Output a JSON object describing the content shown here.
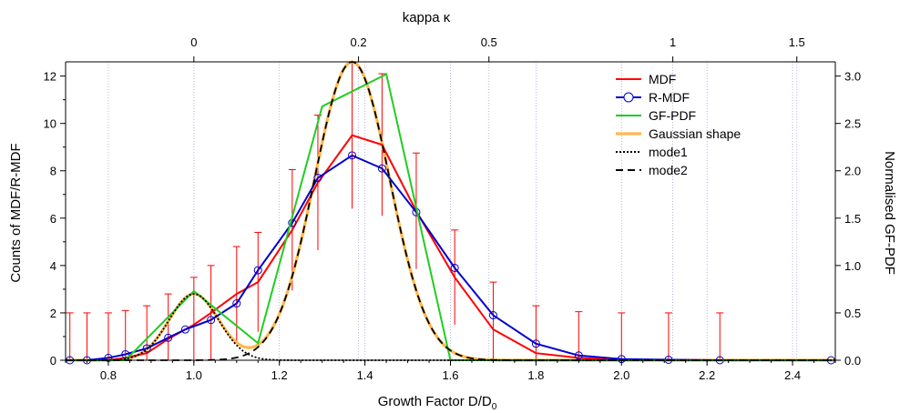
{
  "chart_data": {
    "type": "line",
    "xlabel": "Growth Factor D/D",
    "xlabel_sub": "0",
    "ylabel_left": "Counts of MDF/R-MDF",
    "ylabel_right": "Normalised GF-PDF",
    "top_axis_label": "kappa  κ",
    "xlim": [
      0.7,
      2.5
    ],
    "ylim_left": [
      0,
      12.6
    ],
    "ylim_right": [
      0,
      3.15
    ],
    "x_ticks": [
      {
        "v": 0.8,
        "label": "0.8"
      },
      {
        "v": 1.0,
        "label": "1.0"
      },
      {
        "v": 1.2,
        "label": "1.2"
      },
      {
        "v": 1.4,
        "label": "1.4"
      },
      {
        "v": 1.6,
        "label": "1.6"
      },
      {
        "v": 1.8,
        "label": "1.8"
      },
      {
        "v": 2.0,
        "label": "2.0"
      },
      {
        "v": 2.2,
        "label": "2.2"
      },
      {
        "v": 2.4,
        "label": "2.4"
      }
    ],
    "y_left_ticks": [
      {
        "v": 0,
        "label": "0"
      },
      {
        "v": 2,
        "label": "2"
      },
      {
        "v": 4,
        "label": "4"
      },
      {
        "v": 6,
        "label": "6"
      },
      {
        "v": 8,
        "label": "8"
      },
      {
        "v": 10,
        "label": "10"
      },
      {
        "v": 12,
        "label": "12"
      }
    ],
    "y_right_ticks": [
      {
        "v": 0.0,
        "label": "0.0"
      },
      {
        "v": 0.5,
        "label": "0.5"
      },
      {
        "v": 1.0,
        "label": "1.0"
      },
      {
        "v": 1.5,
        "label": "1.5"
      },
      {
        "v": 2.0,
        "label": "2.0"
      },
      {
        "v": 2.5,
        "label": "2.5"
      },
      {
        "v": 3.0,
        "label": "3.0"
      }
    ],
    "top_ticks": [
      {
        "gf": 1.0,
        "label": "0"
      },
      {
        "gf": 1.385,
        "label": "0.2"
      },
      {
        "gf": 1.69,
        "label": "0.5"
      },
      {
        "gf": 2.12,
        "label": "1"
      },
      {
        "gf": 2.41,
        "label": "1.5"
      }
    ],
    "grid": true,
    "legend_position": "top-right",
    "legend": [
      {
        "label": "MDF",
        "color": "#ff0000",
        "style": "solid"
      },
      {
        "label": "R-MDF",
        "color": "#0000cc",
        "style": "solid-circle"
      },
      {
        "label": "GF-PDF",
        "color": "#22cc22",
        "style": "solid"
      },
      {
        "label": "Gaussian shape",
        "color": "#ffb84d",
        "style": "thick"
      },
      {
        "label": "mode1",
        "color": "#000000",
        "style": "dotted"
      },
      {
        "label": "mode2",
        "color": "#000000",
        "style": "dashed"
      }
    ],
    "series": [
      {
        "name": "MDF",
        "axis": "left",
        "color": "#ff0000",
        "x": [
          0.71,
          0.75,
          0.8,
          0.84,
          0.89,
          0.94,
          1.0,
          1.04,
          1.1,
          1.15,
          1.23,
          1.29,
          1.37,
          1.44,
          1.52,
          1.61,
          1.7,
          1.8,
          1.9,
          2.0,
          2.11,
          2.23,
          2.49
        ],
        "y": [
          0,
          0,
          0,
          0.1,
          0.3,
          0.9,
          1.5,
          2.0,
          2.8,
          3.3,
          5.5,
          7.5,
          9.5,
          9.1,
          6.3,
          3.5,
          1.3,
          0.3,
          0.1,
          0,
          0,
          0,
          0
        ]
      },
      {
        "name": "R-MDF",
        "axis": "left",
        "color": "#0000cc",
        "x": [
          0.71,
          0.75,
          0.8,
          0.84,
          0.89,
          0.94,
          0.98,
          1.04,
          1.1,
          1.15,
          1.23,
          1.29,
          1.37,
          1.44,
          1.52,
          1.61,
          1.7,
          1.8,
          1.9,
          2.0,
          2.11,
          2.23,
          2.49
        ],
        "y": [
          0,
          0,
          0.1,
          0.25,
          0.5,
          0.95,
          1.3,
          1.7,
          2.4,
          3.8,
          5.8,
          7.7,
          8.65,
          8.1,
          6.25,
          3.9,
          1.9,
          0.7,
          0.2,
          0.05,
          0.02,
          0,
          0
        ],
        "markers": true
      },
      {
        "name": "GF-PDF",
        "axis": "right",
        "color": "#22cc22",
        "x": [
          0.71,
          0.84,
          1.0,
          1.15,
          1.3,
          1.45,
          1.6,
          1.62,
          2.49
        ],
        "y": [
          0,
          0,
          0.73,
          0.18,
          2.68,
          3.02,
          0.0,
          0,
          0
        ]
      }
    ],
    "error_bars": {
      "color": "#ff0000",
      "points": [
        {
          "x": 0.71,
          "y": 0,
          "err": 2.0
        },
        {
          "x": 0.75,
          "y": 0,
          "err": 2.0
        },
        {
          "x": 0.8,
          "y": 0,
          "err": 2.0
        },
        {
          "x": 0.84,
          "y": 0.1,
          "err": 2.0
        },
        {
          "x": 0.89,
          "y": 0.3,
          "err": 2.0
        },
        {
          "x": 0.94,
          "y": 0.9,
          "err": 1.9
        },
        {
          "x": 1.0,
          "y": 1.5,
          "err": 2.0
        },
        {
          "x": 1.04,
          "y": 2.0,
          "err": 2.0
        },
        {
          "x": 1.1,
          "y": 2.8,
          "err": 2.0
        },
        {
          "x": 1.15,
          "y": 3.3,
          "err": 2.1
        },
        {
          "x": 1.23,
          "y": 5.5,
          "err": 2.55
        },
        {
          "x": 1.29,
          "y": 7.5,
          "err": 2.85
        },
        {
          "x": 1.37,
          "y": 9.5,
          "err": 3.1
        },
        {
          "x": 1.44,
          "y": 9.1,
          "err": 3.0
        },
        {
          "x": 1.52,
          "y": 6.3,
          "err": 2.45
        },
        {
          "x": 1.61,
          "y": 3.5,
          "err": 2.0
        },
        {
          "x": 1.7,
          "y": 1.3,
          "err": 2.0
        },
        {
          "x": 1.8,
          "y": 0.3,
          "err": 2.0
        },
        {
          "x": 1.9,
          "y": 0.1,
          "err": 1.95
        },
        {
          "x": 2.0,
          "y": 0,
          "err": 2.0
        },
        {
          "x": 2.11,
          "y": 0,
          "err": 2.0
        },
        {
          "x": 2.23,
          "y": 0,
          "err": 2.0
        }
      ]
    },
    "curves": {
      "gaussian": {
        "name": "Gaussian shape",
        "color": "#ffb84d",
        "axis": "left"
      },
      "mode1": {
        "name": "mode1",
        "color": "#000000",
        "amp": 2.8,
        "mu": 1.0,
        "sigma": 0.058,
        "axis": "left"
      },
      "mode2": {
        "name": "mode2",
        "color": "#000000",
        "amp": 12.6,
        "mu": 1.37,
        "sigma": 0.088,
        "axis": "left"
      }
    }
  }
}
